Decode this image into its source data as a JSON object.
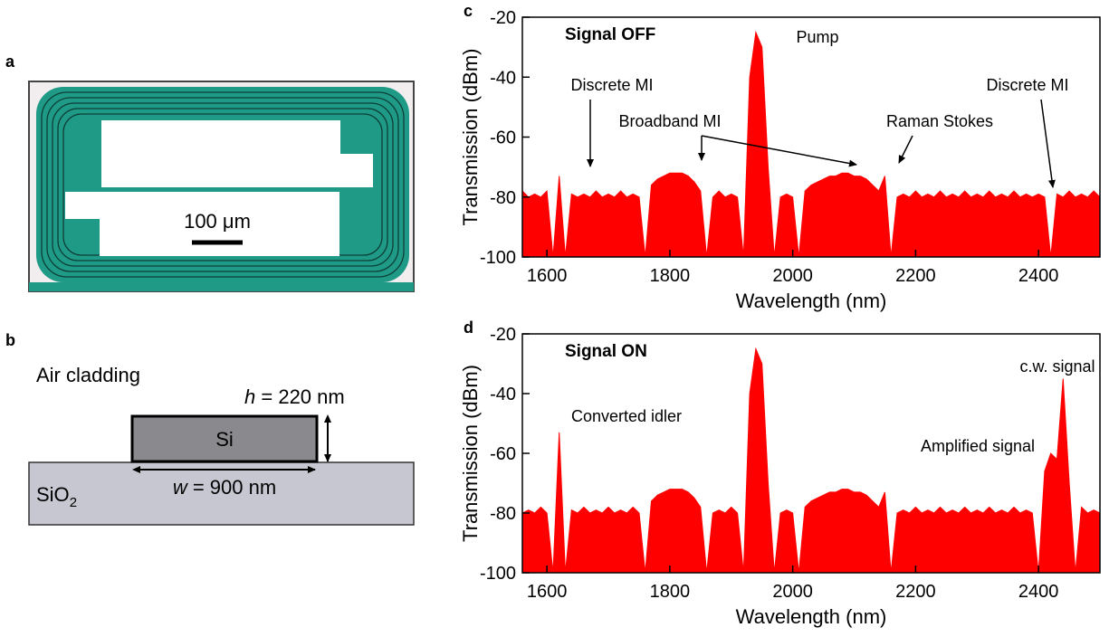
{
  "panels": {
    "a": {
      "letter": "a",
      "scale_bar": "100 μm"
    },
    "b": {
      "letter": "b",
      "cladding": "Air cladding",
      "height": {
        "var": "h",
        "text": "= 220 nm"
      },
      "core": "Si",
      "width": {
        "var": "w",
        "text": "= 900 nm"
      },
      "substrate": {
        "text": "SiO",
        "sub": "2"
      }
    }
  },
  "chart_data": [
    {
      "type": "area",
      "label": "c",
      "title": "Signal OFF",
      "xlabel": "Wavelength (nm)",
      "ylabel": "Transmission (dBm)",
      "color": "#ff0000",
      "annotations": [
        "Discrete MI",
        "Pump",
        "Broadband MI",
        "Raman Stokes",
        "Discrete MI"
      ],
      "xlim": [
        1560,
        2500
      ],
      "ylim": [
        -100,
        -20
      ],
      "xticks": [
        1600,
        1800,
        2000,
        2200,
        2400
      ],
      "yticks": [
        -100,
        -80,
        -60,
        -40,
        -20
      ],
      "x": [
        1560,
        1570,
        1580,
        1590,
        1600,
        1610,
        1620,
        1630,
        1640,
        1650,
        1660,
        1670,
        1680,
        1690,
        1700,
        1710,
        1720,
        1730,
        1740,
        1750,
        1760,
        1770,
        1780,
        1790,
        1800,
        1810,
        1820,
        1830,
        1840,
        1850,
        1860,
        1870,
        1880,
        1890,
        1900,
        1910,
        1920,
        1930,
        1940,
        1950,
        1960,
        1970,
        1980,
        1990,
        2000,
        2010,
        2020,
        2030,
        2040,
        2050,
        2060,
        2070,
        2080,
        2090,
        2100,
        2110,
        2120,
        2130,
        2140,
        2150,
        2160,
        2170,
        2180,
        2190,
        2200,
        2210,
        2220,
        2230,
        2240,
        2250,
        2260,
        2270,
        2280,
        2290,
        2300,
        2310,
        2320,
        2330,
        2340,
        2350,
        2360,
        2370,
        2380,
        2390,
        2400,
        2410,
        2420,
        2430,
        2440,
        2450,
        2460,
        2470,
        2480,
        2490,
        2500
      ],
      "values": [
        -78,
        -80,
        -79,
        -80,
        -78,
        -100,
        -73,
        -100,
        -79,
        -80,
        -79,
        -80,
        -78,
        -80,
        -79,
        -80,
        -78,
        -80,
        -79,
        -80,
        -100,
        -76,
        -74,
        -73,
        -72,
        -72,
        -72,
        -73,
        -75,
        -78,
        -100,
        -80,
        -78,
        -80,
        -79,
        -80,
        -100,
        -40,
        -25,
        -30,
        -70,
        -100,
        -80,
        -79,
        -80,
        -100,
        -78,
        -76,
        -75,
        -74,
        -73,
        -73,
        -72,
        -72,
        -73,
        -73,
        -74,
        -76,
        -78,
        -73,
        -100,
        -80,
        -79,
        -80,
        -78,
        -80,
        -79,
        -80,
        -78,
        -80,
        -79,
        -80,
        -78,
        -80,
        -79,
        -80,
        -78,
        -80,
        -79,
        -80,
        -78,
        -80,
        -79,
        -80,
        -79,
        -80,
        -100,
        -79,
        -80,
        -78,
        -80,
        -79,
        -80,
        -78,
        -80
      ]
    },
    {
      "type": "area",
      "label": "d",
      "title": "Signal ON",
      "xlabel": "Wavelength (nm)",
      "ylabel": "Transmission (dBm)",
      "color": "#ff0000",
      "annotations": [
        "Converted idler",
        "c.w. signal",
        "Amplified signal"
      ],
      "xlim": [
        1560,
        2500
      ],
      "ylim": [
        -100,
        -20
      ],
      "xticks": [
        1600,
        1800,
        2000,
        2200,
        2400
      ],
      "yticks": [
        -100,
        -80,
        -60,
        -40,
        -20
      ],
      "x": [
        1560,
        1570,
        1580,
        1590,
        1600,
        1610,
        1620,
        1630,
        1640,
        1650,
        1660,
        1670,
        1680,
        1690,
        1700,
        1710,
        1720,
        1730,
        1740,
        1750,
        1760,
        1770,
        1780,
        1790,
        1800,
        1810,
        1820,
        1830,
        1840,
        1850,
        1860,
        1870,
        1880,
        1890,
        1900,
        1910,
        1920,
        1930,
        1940,
        1950,
        1960,
        1970,
        1980,
        1990,
        2000,
        2010,
        2020,
        2030,
        2040,
        2050,
        2060,
        2070,
        2080,
        2090,
        2100,
        2110,
        2120,
        2130,
        2140,
        2150,
        2160,
        2170,
        2180,
        2190,
        2200,
        2210,
        2220,
        2230,
        2240,
        2250,
        2260,
        2270,
        2280,
        2290,
        2300,
        2310,
        2320,
        2330,
        2340,
        2350,
        2360,
        2370,
        2380,
        2390,
        2400,
        2410,
        2420,
        2430,
        2440,
        2450,
        2460,
        2470,
        2480,
        2490,
        2500
      ],
      "values": [
        -80,
        -79,
        -80,
        -78,
        -80,
        -100,
        -53,
        -100,
        -79,
        -80,
        -78,
        -80,
        -79,
        -80,
        -78,
        -80,
        -79,
        -80,
        -78,
        -80,
        -100,
        -76,
        -74,
        -73,
        -72,
        -72,
        -72,
        -73,
        -75,
        -78,
        -100,
        -80,
        -79,
        -80,
        -78,
        -80,
        -100,
        -40,
        -25,
        -30,
        -70,
        -100,
        -80,
        -79,
        -80,
        -100,
        -78,
        -76,
        -75,
        -74,
        -73,
        -73,
        -72,
        -72,
        -73,
        -73,
        -74,
        -76,
        -78,
        -73,
        -100,
        -80,
        -79,
        -80,
        -78,
        -80,
        -79,
        -80,
        -78,
        -80,
        -79,
        -80,
        -78,
        -80,
        -79,
        -80,
        -78,
        -80,
        -79,
        -80,
        -78,
        -80,
        -79,
        -80,
        -100,
        -66,
        -60,
        -62,
        -35,
        -70,
        -100,
        -78,
        -80,
        -79,
        -80
      ]
    }
  ]
}
